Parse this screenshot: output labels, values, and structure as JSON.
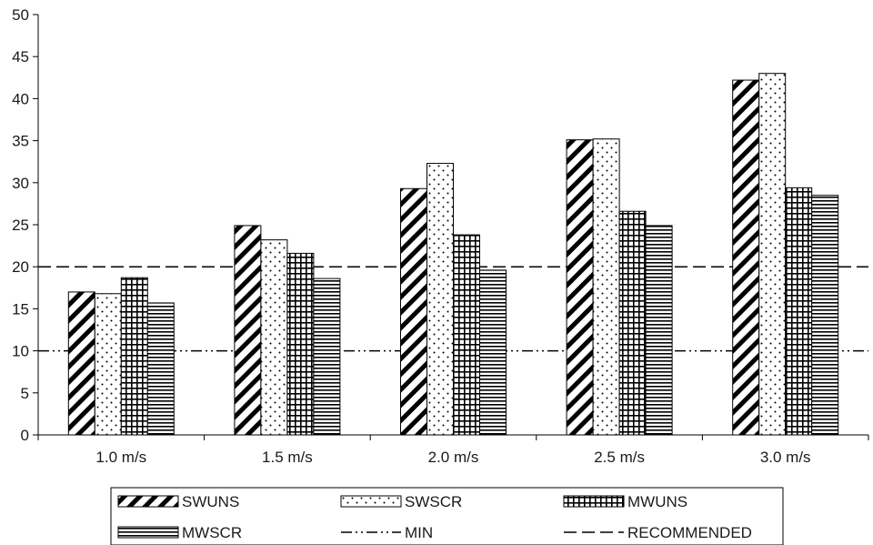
{
  "chart_data": {
    "type": "bar",
    "categories": [
      "1.0 m/s",
      "1.5 m/s",
      "2.0 m/s",
      "2.5 m/s",
      "3.0 m/s"
    ],
    "series": [
      {
        "name": "SWUNS",
        "values": [
          17.0,
          24.9,
          29.3,
          35.1,
          42.2
        ],
        "pattern": "diagonal-hatch"
      },
      {
        "name": "SWSCR",
        "values": [
          16.8,
          23.2,
          32.3,
          35.2,
          43.0
        ],
        "pattern": "dots"
      },
      {
        "name": "MWUNS",
        "values": [
          18.7,
          21.6,
          23.8,
          26.6,
          29.4
        ],
        "pattern": "grid"
      },
      {
        "name": "MWSCR",
        "values": [
          15.7,
          18.6,
          19.6,
          24.9,
          28.5
        ],
        "pattern": "horizontal-lines"
      }
    ],
    "reference_lines": [
      {
        "name": "MIN",
        "value": 10,
        "style": "dash-dot-dot"
      },
      {
        "name": "RECOMMENDED",
        "value": 20,
        "style": "dashed"
      }
    ],
    "title": "",
    "xlabel": "",
    "ylabel": "",
    "ylim": [
      0,
      50
    ],
    "yticks": [
      "0",
      "5",
      "10",
      "15",
      "20",
      "25",
      "30",
      "35",
      "40",
      "45",
      "50"
    ],
    "grid": false,
    "legend_position": "bottom",
    "colors": {
      "ink": "#000000",
      "fill": "#ffffff"
    }
  }
}
